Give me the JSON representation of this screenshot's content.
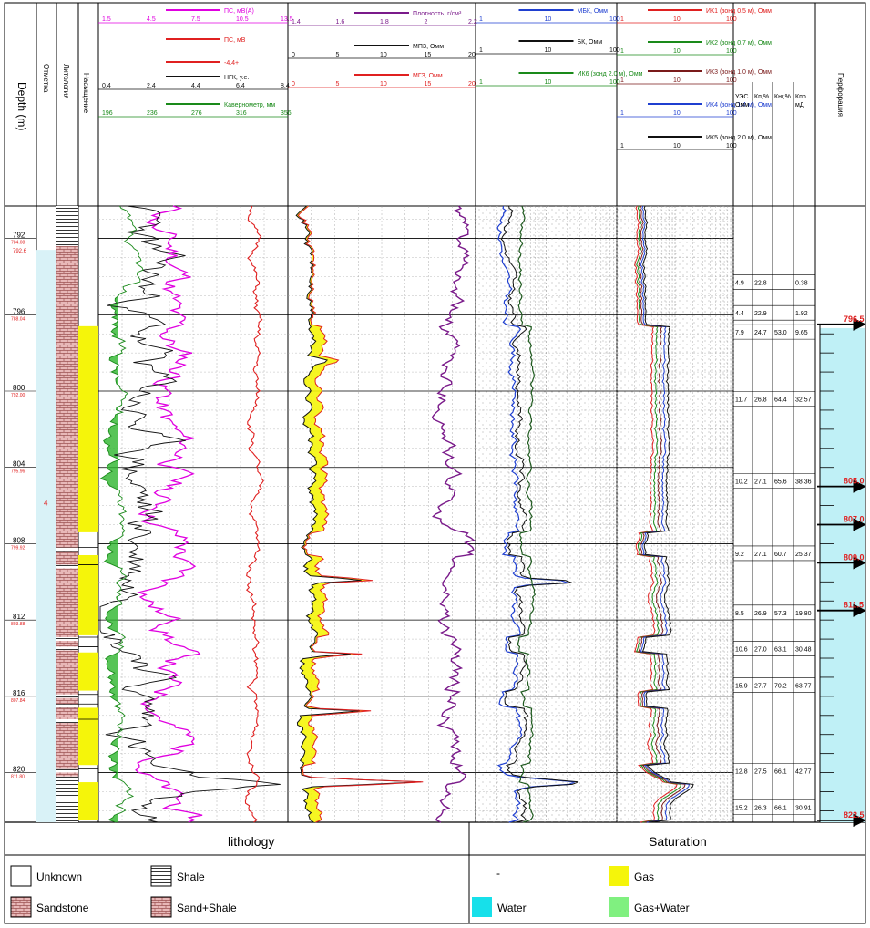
{
  "colors": {
    "magenta": "#e000e0",
    "red": "#e02020",
    "black": "#111111",
    "green": "#1a8a1a",
    "purple": "#7a1a8a",
    "blue": "#1f3fd0",
    "darkgreen": "#1f5a1f",
    "brown": "#7a1a1a",
    "yellow": "#f5f50a",
    "cyan": "#9fe3ef",
    "sand": "#e8b8b8"
  },
  "header": {
    "depth_label": "Depth (m)",
    "col2_label": "Отметка",
    "col3_label": "Литология",
    "col4_label": "Насыщение"
  },
  "track1": {
    "curves": [
      {
        "name": "ПС, мВ(А)",
        "color": "#e000e0",
        "ticks": [
          "1.5",
          "4.5",
          "7.5",
          "10.5",
          "13.5"
        ]
      },
      {
        "name": "ПС, мВ",
        "color": "#e02020",
        "ticks": []
      },
      {
        "name": "-4.4+",
        "color": "#e02020",
        "ticks": []
      },
      {
        "name": "НГК, у.е.",
        "color": "#111111",
        "ticks": [
          "0.4",
          "2.4",
          "4.4",
          "6.4",
          "8.4"
        ]
      },
      {
        "name": "Кавернометр, мм",
        "color": "#1a8a1a",
        "ticks": [
          "196",
          "236",
          "276",
          "316",
          "356"
        ]
      }
    ]
  },
  "track2": {
    "curves": [
      {
        "name": "Плотность, г/см³",
        "color": "#7a1a8a",
        "ticks": [
          "1.4",
          "1.6",
          "1.8",
          "2",
          "2.2"
        ]
      },
      {
        "name": "МПЗ, Омм",
        "color": "#111111",
        "ticks": [
          "0",
          "5",
          "10",
          "15",
          "20"
        ]
      },
      {
        "name": "МГЗ, Омм",
        "color": "#e02020",
        "ticks": [
          "0",
          "5",
          "10",
          "15",
          "20"
        ]
      }
    ]
  },
  "track3": {
    "curves": [
      {
        "name": "МБК, Омм",
        "color": "#1f3fd0",
        "ticks": [
          "1",
          "10",
          "100"
        ]
      },
      {
        "name": "БК, Омм",
        "color": "#111111",
        "ticks": [
          "1",
          "10",
          "100"
        ]
      },
      {
        "name": "ИК6 (зонд 2.0 м), Омм",
        "color": "#1a8a1a",
        "ticks": [
          "1",
          "10",
          "100"
        ]
      }
    ]
  },
  "track4": {
    "curves": [
      {
        "name": "ИК1 (зонд 0.5 м), Омм",
        "color": "#e02020",
        "ticks": [
          "1",
          "10",
          "100"
        ]
      },
      {
        "name": "ИК2 (зонд 0.7 м), Омм",
        "color": "#1a8a1a",
        "ticks": [
          "1",
          "10",
          "100"
        ]
      },
      {
        "name": "ИК3 (зонд 1.0 м), Омм",
        "color": "#7a1a1a",
        "ticks": [
          "1",
          "10",
          "100"
        ]
      },
      {
        "name": "ИК4 (зонд 1.4 м), Омм",
        "color": "#1f3fd0",
        "ticks": [
          "1",
          "10",
          "100"
        ]
      },
      {
        "name": "ИК5 (зонд 2.0 м), Омм",
        "color": "#111111",
        "ticks": [
          "1",
          "10",
          "100"
        ]
      }
    ]
  },
  "table_headers": [
    "УЭС Омм",
    "Кп,%",
    "Кнг,%",
    "Кпр мД"
  ],
  "right_header": "Перфорация",
  "depth_ticks": [
    "792",
    "796",
    "800",
    "804",
    "808",
    "812",
    "816",
    "820"
  ],
  "table_rows": [
    {
      "depth": 794.3,
      "v": [
        "4.9",
        "22.8",
        "",
        "0.38"
      ]
    },
    {
      "depth": 795.9,
      "v": [
        "4.4",
        "22.9",
        "",
        "1.92"
      ]
    },
    {
      "depth": 796.9,
      "v": [
        "7.9",
        "24.7",
        "53.0",
        "9.65"
      ]
    },
    {
      "depth": 800.4,
      "v": [
        "11.7",
        "26.8",
        "64.4",
        "32.57"
      ]
    },
    {
      "depth": 804.7,
      "v": [
        "10.2",
        "27.1",
        "65.6",
        "38.36"
      ]
    },
    {
      "depth": 808.5,
      "v": [
        "9.2",
        "27.1",
        "60.7",
        "25.37"
      ]
    },
    {
      "depth": 811.6,
      "v": [
        "8.5",
        "26.9",
        "57.3",
        "19.80"
      ]
    },
    {
      "depth": 813.5,
      "v": [
        "10.6",
        "27.0",
        "63.1",
        "30.48"
      ]
    },
    {
      "depth": 815.4,
      "v": [
        "15.9",
        "27.7",
        "70.2",
        "63.77"
      ]
    },
    {
      "depth": 819.9,
      "v": [
        "12.8",
        "27.5",
        "66.1",
        "42.77"
      ]
    },
    {
      "depth": 821.8,
      "v": [
        "15.2",
        "26.3",
        "66.1",
        "30.91"
      ]
    }
  ],
  "perf_labels": [
    "796.5",
    "805.0",
    "807.0",
    "809.0",
    "811.5",
    "822.5"
  ],
  "chart_data": {
    "type": "line",
    "title": "",
    "ylabel": "Depth (m)",
    "ylim": [
      790,
      822.5
    ],
    "depth_reversed": true,
    "depth_ticks": [
      792,
      796,
      800,
      804,
      808,
      812,
      816,
      820
    ],
    "gas_zones": [
      [
        796.6,
        807.4
      ],
      [
        808.6,
        812.8
      ],
      [
        813.7,
        815.7
      ],
      [
        816.6,
        819.6
      ],
      [
        820.5,
        822.5
      ]
    ],
    "perforation_depths": [
      796.5,
      805.0,
      807.0,
      809.0,
      811.5,
      822.5
    ],
    "series": [
      {
        "name": "ПС, мВ(А)",
        "color": "#e000e0",
        "track": 1,
        "scale": [
          1.5,
          13.5
        ]
      },
      {
        "name": "НГК, у.е.",
        "color": "#111111",
        "track": 1,
        "scale": [
          0.4,
          8.4
        ]
      },
      {
        "name": "Кавернометр, мм",
        "color": "#1a8a1a",
        "track": 1,
        "scale": [
          196,
          356
        ]
      },
      {
        "name": "Плотность, г/см³",
        "color": "#7a1a8a",
        "track": 2,
        "scale": [
          1.4,
          2.2
        ]
      },
      {
        "name": "МПЗ, Омм",
        "color": "#111111",
        "track": 2,
        "scale": [
          0,
          20
        ]
      },
      {
        "name": "МГЗ, Омм",
        "color": "#e02020",
        "track": 2,
        "scale": [
          0,
          20
        ]
      },
      {
        "name": "МБК, Омм",
        "color": "#1f3fd0",
        "track": 3,
        "scale": [
          1,
          100
        ],
        "log": true
      },
      {
        "name": "БК, Омм",
        "color": "#111111",
        "track": 3,
        "scale": [
          1,
          100
        ],
        "log": true
      },
      {
        "name": "ИК6 (зонд 2.0 м), Омм",
        "color": "#1a8a1a",
        "track": 3,
        "scale": [
          1,
          100
        ],
        "log": true
      },
      {
        "name": "ИК1 (зонд 0.5 м), Омм",
        "color": "#e02020",
        "track": 4,
        "scale": [
          1,
          100
        ],
        "log": true
      },
      {
        "name": "ИК2 (зонд 0.7 м), Омм",
        "color": "#1a8a1a",
        "track": 4,
        "scale": [
          1,
          100
        ],
        "log": true
      },
      {
        "name": "ИК3 (зонд 1.0 м), Омм",
        "color": "#7a1a1a",
        "track": 4,
        "scale": [
          1,
          100
        ],
        "log": true
      },
      {
        "name": "ИК4 (зонд 1.4 м), Омм",
        "color": "#1f3fd0",
        "track": 4,
        "scale": [
          1,
          100
        ],
        "log": true
      },
      {
        "name": "ИК5 (зонд 2.0 м), Омм",
        "color": "#111111",
        "track": 4,
        "scale": [
          1,
          100
        ],
        "log": true
      }
    ]
  },
  "footer": {
    "left_title": "lithology",
    "right_title": "Saturation",
    "legend_left": [
      {
        "label": "Unknown",
        "icon": "unknown-icon"
      },
      {
        "label": "Shale",
        "icon": "shale-icon"
      },
      {
        "label": "Sandstone",
        "icon": "sandstone-icon"
      },
      {
        "label": "Sand+Shale",
        "icon": "sand-shale-icon"
      }
    ],
    "legend_right": [
      {
        "label": "-",
        "icon": "none-icon"
      },
      {
        "label": "Gas",
        "icon": "gas-swatch-icon",
        "color": "#f5f50a"
      },
      {
        "label": "Water",
        "icon": "water-swatch-icon",
        "color": "#17e0ea"
      },
      {
        "label": "Gas+Water",
        "icon": "gas-water-swatch-icon",
        "color": "#80f080"
      }
    ]
  }
}
